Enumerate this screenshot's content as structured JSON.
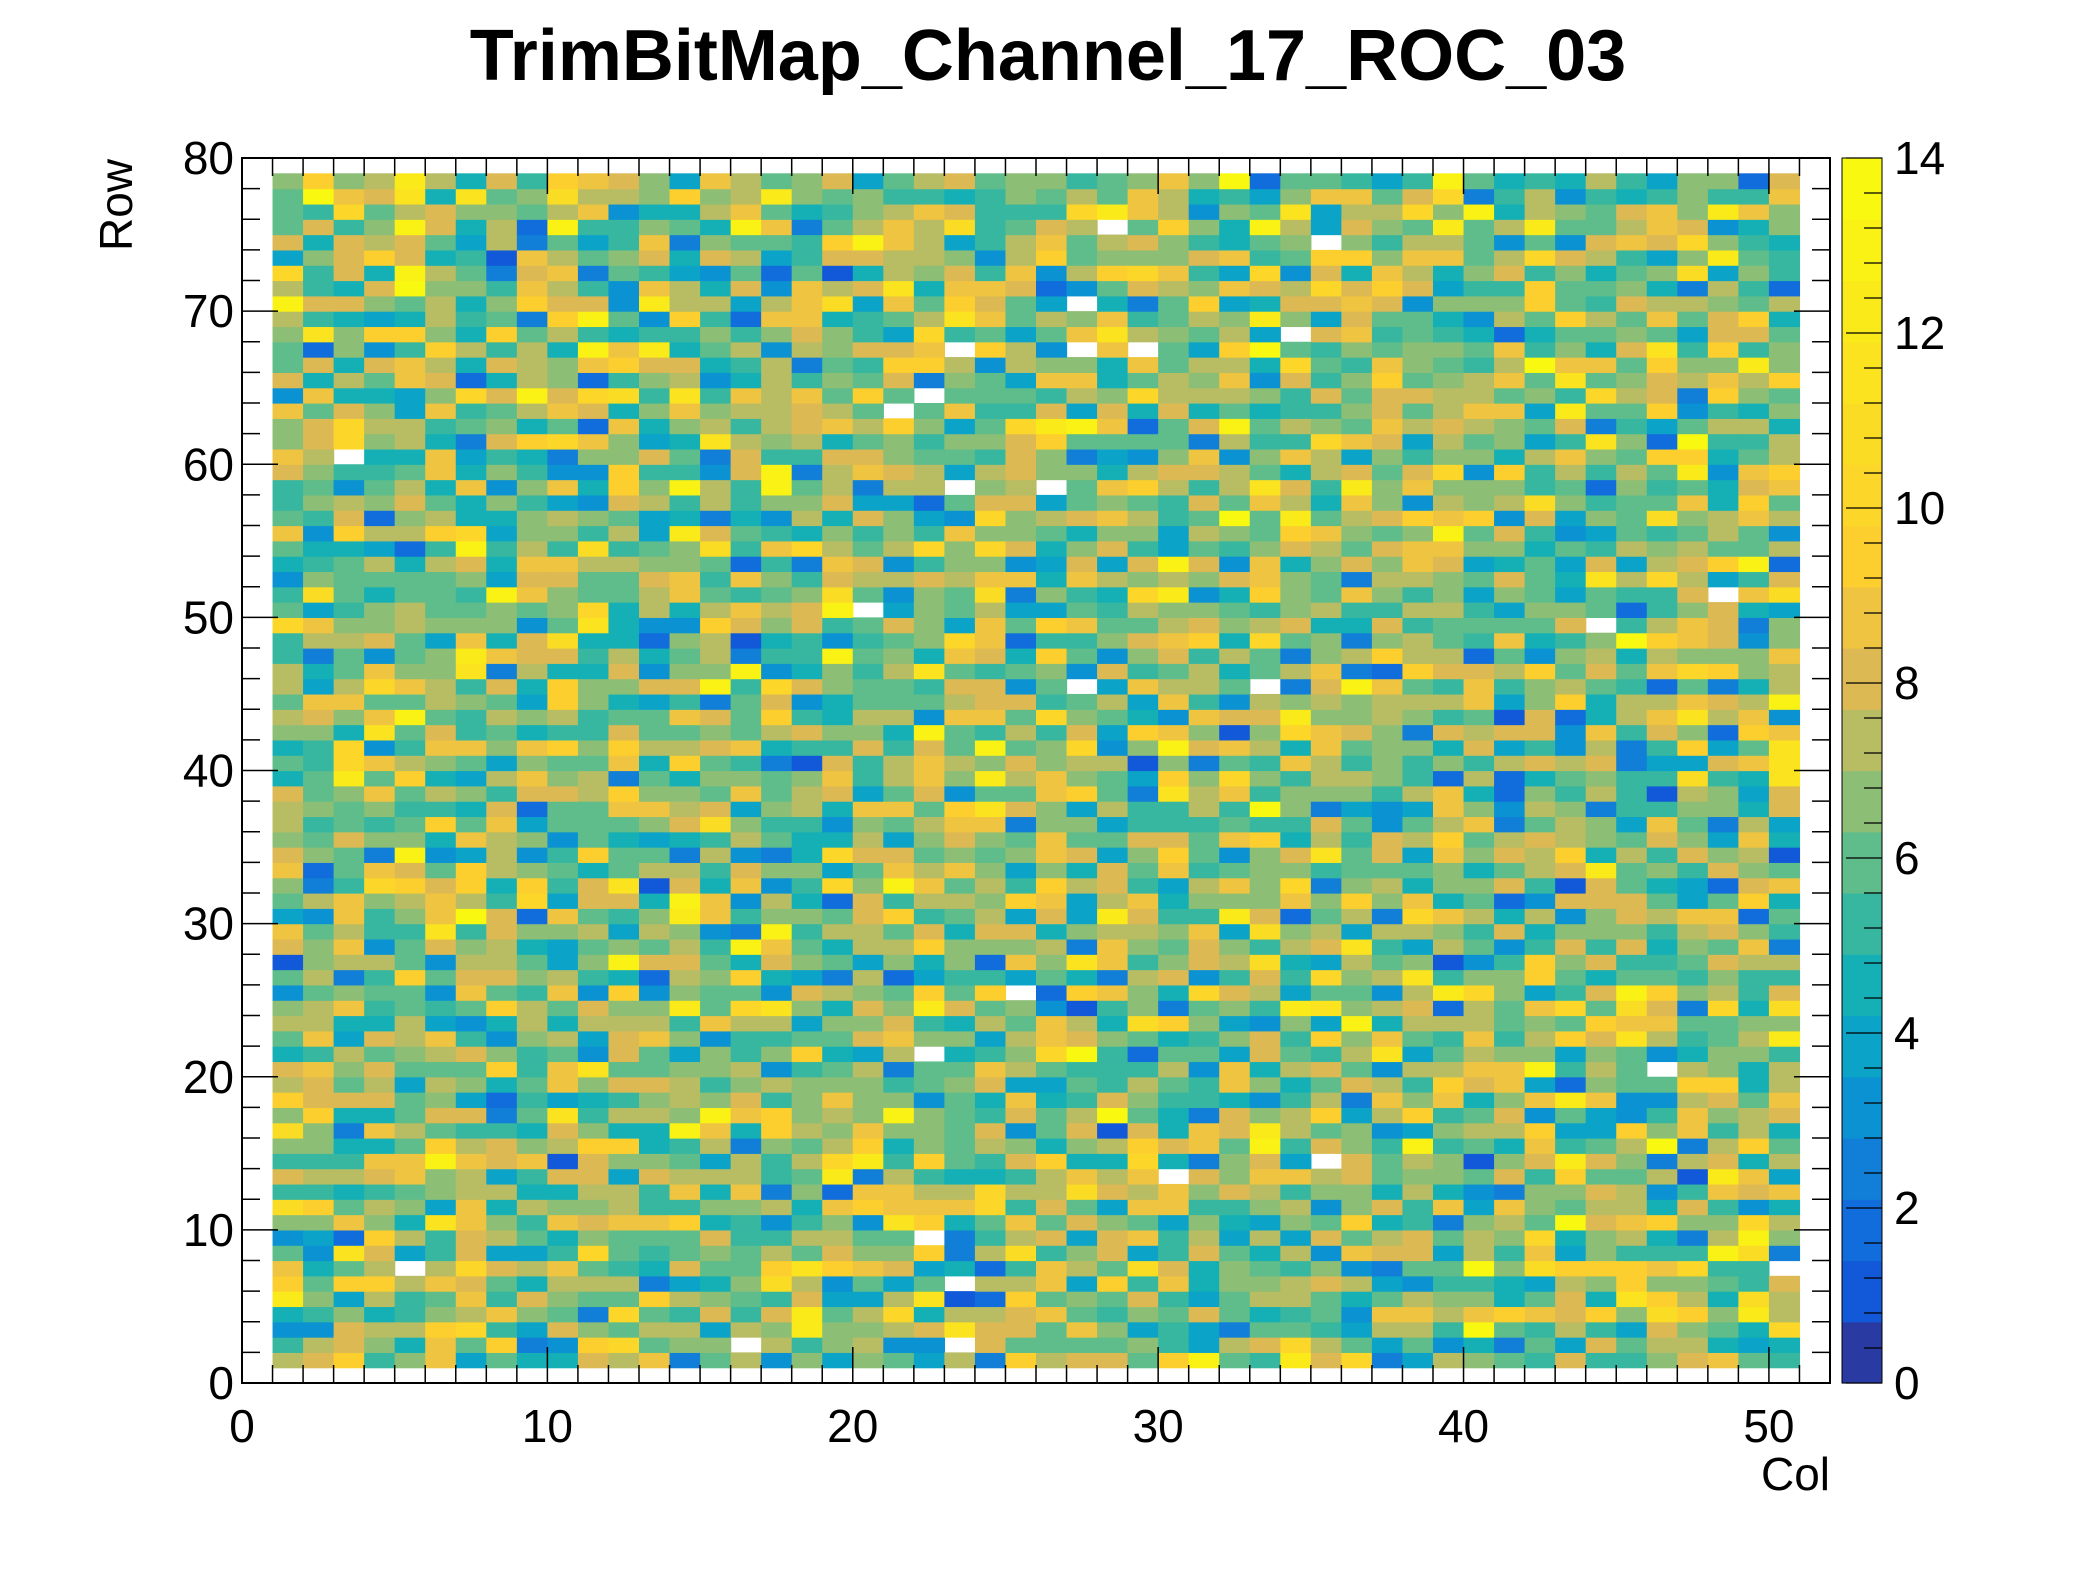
{
  "chart_data": {
    "type": "heatmap",
    "title": "TrimBitMap_Channel_17_ROC_03",
    "xlabel": "Col",
    "ylabel": "Row",
    "xlim": [
      0,
      52
    ],
    "ylim": [
      0,
      80
    ],
    "zlim": [
      0,
      14
    ],
    "x_ticks": [
      "0",
      "10",
      "20",
      "30",
      "40",
      "50"
    ],
    "y_ticks": [
      "0",
      "10",
      "20",
      "30",
      "40",
      "50",
      "60",
      "70",
      "80"
    ],
    "z_ticks": [
      "0",
      "2",
      "4",
      "6",
      "8",
      "10",
      "12",
      "14"
    ],
    "colormap": "kBird",
    "n_color_levels": 20,
    "filled_cols": [
      1,
      51
    ],
    "filled_rows": [
      1,
      79
    ],
    "grid": false,
    "legend": "colorbar-right",
    "empty_cells": [
      [
        3,
        60
      ],
      [
        22,
        64
      ],
      [
        21,
        63
      ],
      [
        28,
        75
      ],
      [
        27,
        70
      ],
      [
        35,
        74
      ],
      [
        34,
        68
      ],
      [
        23,
        67
      ],
      [
        27,
        67
      ],
      [
        29,
        67
      ],
      [
        23,
        58
      ],
      [
        26,
        58
      ],
      [
        20,
        50
      ],
      [
        48,
        51
      ],
      [
        44,
        49
      ],
      [
        27,
        45
      ],
      [
        33,
        45
      ],
      [
        25,
        25
      ],
      [
        22,
        21
      ],
      [
        46,
        20
      ],
      [
        35,
        14
      ],
      [
        30,
        13
      ],
      [
        22,
        9
      ],
      [
        5,
        7
      ],
      [
        50,
        7
      ],
      [
        23,
        6
      ],
      [
        16,
        2
      ],
      [
        23,
        2
      ],
      [
        3,
        0
      ]
    ]
  }
}
